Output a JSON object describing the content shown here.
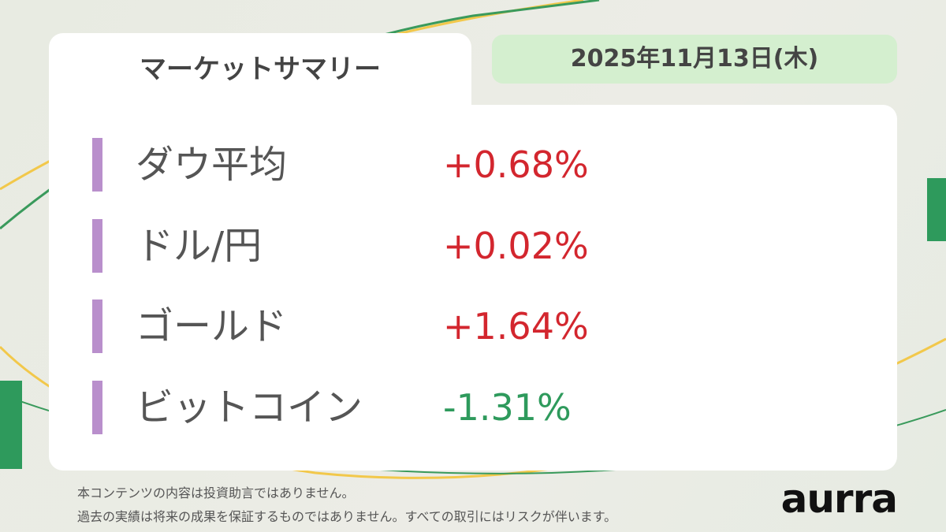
{
  "header": {
    "title": "マーケットサマリー",
    "date": "2025年11月13日(木)"
  },
  "items": [
    {
      "name": "ダウ平均",
      "change": "+0.68%",
      "color": "#d3262e"
    },
    {
      "name": "ドル/円",
      "change": "+0.02%",
      "color": "#d3262e"
    },
    {
      "name": "ゴールド",
      "change": "+1.64%",
      "color": "#d3262e"
    },
    {
      "name": "ビットコイン",
      "change": "-1.31%",
      "color": "#2e9a5c"
    }
  ],
  "footer": {
    "disclaimer": [
      "本コンテンツの内容は投資助言ではありません。",
      "過去の実績は将来の成果を保証するものではありません。すべての取引にはリスクが伴います。"
    ],
    "brand": "aurra"
  }
}
